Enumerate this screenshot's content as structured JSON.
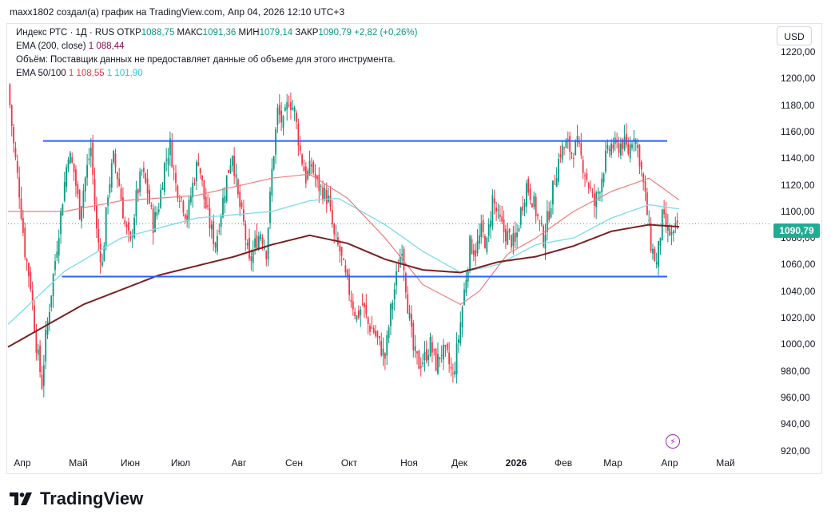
{
  "header": {
    "text": "maxx1802 создал(а) график на TradingView.com, Апр 04, 2026 12:10 UTC+3"
  },
  "legend": {
    "line1": {
      "name": "Индекс РТС · 1Д · RUS",
      "open_label": "ОТКР",
      "open": "1088,75",
      "high_label": "МАКС",
      "high": "1091,36",
      "low_label": "МИН",
      "low": "1079,14",
      "close_label": "ЗАКР",
      "close": "1090,79",
      "change": "+2,82 (+0,26%)"
    },
    "line2": {
      "name": "EMA (200, close)",
      "value": "1 088,44"
    },
    "line3": {
      "text": "Объём: Поставщик данных не предоставляет данные об объеме для этого инструмента."
    },
    "line4": {
      "name": "EMA 50/100",
      "v50": "1 108,55",
      "v100": "1 101,90"
    }
  },
  "currency_button": "USD",
  "price_badge": "1090,79",
  "brand": "TradingView",
  "colors": {
    "up": "#089981",
    "down": "#f23645",
    "ema200": "#7b1f1f",
    "ema50": "#f07c7c",
    "ema100": "#80deea",
    "trendline": "#2962ff"
  },
  "chart_data": {
    "type": "candlestick",
    "title": "Индекс РТС · 1Д · RUS",
    "y_ticks": [
      "1220,00",
      "1200,00",
      "1180,00",
      "1160,00",
      "1140,00",
      "1120,00",
      "1100,00",
      "1080,00",
      "1060,00",
      "1040,00",
      "1020,00",
      "1000,00",
      "980,00",
      "960,00",
      "940,00",
      "920,00"
    ],
    "ylim": [
      912,
      1232
    ],
    "x_ticks": [
      "Апр",
      "Май",
      "Июн",
      "Июл",
      "Авг",
      "Сен",
      "Окт",
      "Ноя",
      "Дек",
      "2026",
      "Фев",
      "Мар",
      "Апр",
      "Май"
    ],
    "close_path": [
      [
        0,
        1195
      ],
      [
        3,
        1150
      ],
      [
        6,
        1115
      ],
      [
        9,
        1070
      ],
      [
        12,
        1045
      ],
      [
        15,
        1000
      ],
      [
        18,
        970
      ],
      [
        20,
        1005
      ],
      [
        23,
        1040
      ],
      [
        26,
        1075
      ],
      [
        29,
        1110
      ],
      [
        32,
        1145
      ],
      [
        35,
        1130
      ],
      [
        38,
        1100
      ],
      [
        41,
        1125
      ],
      [
        44,
        1148
      ],
      [
        47,
        1085
      ],
      [
        50,
        1060
      ],
      [
        53,
        1115
      ],
      [
        56,
        1140
      ],
      [
        59,
        1120
      ],
      [
        62,
        1090
      ],
      [
        65,
        1075
      ],
      [
        68,
        1110
      ],
      [
        71,
        1130
      ],
      [
        74,
        1115
      ],
      [
        77,
        1090
      ],
      [
        80,
        1105
      ],
      [
        83,
        1135
      ],
      [
        86,
        1150
      ],
      [
        89,
        1120
      ],
      [
        92,
        1110
      ],
      [
        95,
        1095
      ],
      [
        98,
        1120
      ],
      [
        101,
        1140
      ],
      [
        104,
        1110
      ],
      [
        107,
        1090
      ],
      [
        110,
        1075
      ],
      [
        113,
        1100
      ],
      [
        116,
        1125
      ],
      [
        119,
        1145
      ],
      [
        122,
        1110
      ],
      [
        125,
        1090
      ],
      [
        128,
        1060
      ],
      [
        131,
        1075
      ],
      [
        134,
        1085
      ],
      [
        137,
        1070
      ],
      [
        140,
        1130
      ],
      [
        143,
        1175
      ],
      [
        146,
        1165
      ],
      [
        149,
        1185
      ],
      [
        152,
        1175
      ],
      [
        155,
        1145
      ],
      [
        158,
        1125
      ],
      [
        161,
        1135
      ],
      [
        164,
        1120
      ],
      [
        167,
        1115
      ],
      [
        170,
        1108
      ],
      [
        173,
        1080
      ],
      [
        176,
        1070
      ],
      [
        179,
        1050
      ],
      [
        182,
        1035
      ],
      [
        185,
        1020
      ],
      [
        188,
        1030
      ],
      [
        191,
        1015
      ],
      [
        194,
        1010
      ],
      [
        197,
        1000
      ],
      [
        200,
        990
      ],
      [
        203,
        1025
      ],
      [
        206,
        1050
      ],
      [
        209,
        1075
      ],
      [
        212,
        1030
      ],
      [
        215,
        995
      ],
      [
        218,
        985
      ],
      [
        221,
        990
      ],
      [
        224,
        1000
      ],
      [
        227,
        985
      ],
      [
        230,
        995
      ],
      [
        233,
        990
      ],
      [
        236,
        975
      ],
      [
        239,
        1005
      ],
      [
        242,
        1040
      ],
      [
        245,
        1075
      ],
      [
        248,
        1070
      ],
      [
        251,
        1085
      ],
      [
        254,
        1075
      ],
      [
        257,
        1110
      ],
      [
        260,
        1095
      ],
      [
        263,
        1085
      ],
      [
        266,
        1080
      ],
      [
        269,
        1075
      ],
      [
        272,
        1100
      ],
      [
        275,
        1120
      ],
      [
        278,
        1110
      ],
      [
        281,
        1095
      ],
      [
        284,
        1080
      ],
      [
        287,
        1100
      ],
      [
        290,
        1125
      ],
      [
        293,
        1145
      ],
      [
        296,
        1150
      ],
      [
        299,
        1145
      ],
      [
        302,
        1150
      ],
      [
        305,
        1135
      ],
      [
        308,
        1120
      ],
      [
        311,
        1105
      ],
      [
        314,
        1120
      ],
      [
        317,
        1140
      ],
      [
        320,
        1150
      ],
      [
        323,
        1148
      ],
      [
        326,
        1152
      ],
      [
        329,
        1145
      ],
      [
        332,
        1160
      ],
      [
        335,
        1140
      ],
      [
        338,
        1110
      ],
      [
        341,
        1075
      ],
      [
        344,
        1060
      ],
      [
        347,
        1095
      ],
      [
        350,
        1085
      ],
      [
        353,
        1080
      ],
      [
        355,
        1090.79
      ]
    ],
    "close_index_max": 356,
    "ema200": [
      [
        0,
        998
      ],
      [
        40,
        1030
      ],
      [
        80,
        1052
      ],
      [
        120,
        1066
      ],
      [
        140,
        1075
      ],
      [
        160,
        1082
      ],
      [
        180,
        1076
      ],
      [
        200,
        1064
      ],
      [
        220,
        1056
      ],
      [
        240,
        1054
      ],
      [
        260,
        1062
      ],
      [
        280,
        1066
      ],
      [
        300,
        1074
      ],
      [
        320,
        1085
      ],
      [
        340,
        1090
      ],
      [
        356,
        1088.44
      ]
    ],
    "ema50": [
      [
        0,
        1100
      ],
      [
        30,
        1100
      ],
      [
        60,
        1108
      ],
      [
        100,
        1112
      ],
      [
        140,
        1125
      ],
      [
        160,
        1128
      ],
      [
        180,
        1110
      ],
      [
        200,
        1080
      ],
      [
        220,
        1045
      ],
      [
        240,
        1030
      ],
      [
        250,
        1040
      ],
      [
        265,
        1068
      ],
      [
        280,
        1080
      ],
      [
        300,
        1100
      ],
      [
        320,
        1115
      ],
      [
        340,
        1125
      ],
      [
        356,
        1108.55
      ]
    ],
    "ema100": [
      [
        0,
        1015
      ],
      [
        30,
        1055
      ],
      [
        60,
        1080
      ],
      [
        100,
        1095
      ],
      [
        140,
        1100
      ],
      [
        160,
        1108
      ],
      [
        175,
        1110
      ],
      [
        200,
        1090
      ],
      [
        220,
        1070
      ],
      [
        240,
        1054
      ],
      [
        260,
        1060
      ],
      [
        280,
        1075
      ],
      [
        300,
        1080
      ],
      [
        320,
        1095
      ],
      [
        340,
        1105
      ],
      [
        356,
        1101.9
      ]
    ],
    "resistance": {
      "from": 8,
      "to": 356,
      "value": 1153
    },
    "support": {
      "from": 18,
      "to": 356,
      "value": 1051
    },
    "last_price": 1090.79
  }
}
